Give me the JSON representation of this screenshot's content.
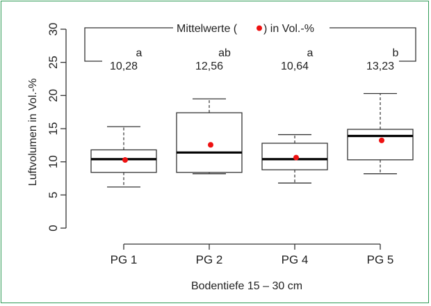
{
  "chart_data": {
    "type": "boxplot",
    "xlabel": "Bodentiefe  15 – 30 cm",
    "ylabel": "Luftvolumen in Vol.-%",
    "ylim": [
      0,
      30
    ],
    "yticks": [
      "0",
      "5",
      "10",
      "15",
      "20",
      "25",
      "30"
    ],
    "grid": false,
    "categories": [
      "PG 1",
      "PG 2",
      "PG 4",
      "PG 5"
    ],
    "boxes": [
      {
        "label": "PG 1",
        "whisker_low": 6.2,
        "q1": 8.4,
        "median": 10.4,
        "q3": 11.8,
        "whisker_high": 15.3,
        "mean": 10.28,
        "mean_label": "10,28",
        "letter": "a"
      },
      {
        "label": "PG 2",
        "whisker_low": 8.2,
        "q1": 8.4,
        "median": 11.4,
        "q3": 17.4,
        "whisker_high": 19.5,
        "mean": 12.56,
        "mean_label": "12,56",
        "letter": "ab"
      },
      {
        "label": "PG 4",
        "whisker_low": 6.8,
        "q1": 8.8,
        "median": 10.4,
        "q3": 12.8,
        "whisker_high": 14.1,
        "mean": 10.64,
        "mean_label": "10,64",
        "letter": "a"
      },
      {
        "label": "PG 5",
        "whisker_low": 8.2,
        "q1": 10.3,
        "median": 13.9,
        "q3": 14.9,
        "whisker_high": 20.3,
        "mean": 13.23,
        "mean_label": "13,23",
        "letter": "b"
      }
    ],
    "legend": {
      "text_before": "Mittelwerte (",
      "text_after": ") in Vol.-%",
      "marker_color": "#ee1111"
    },
    "colors": {
      "mean_marker": "#ee1111",
      "frame": "#2e9a55",
      "box_stroke": "#333333",
      "median": "#000000"
    }
  }
}
